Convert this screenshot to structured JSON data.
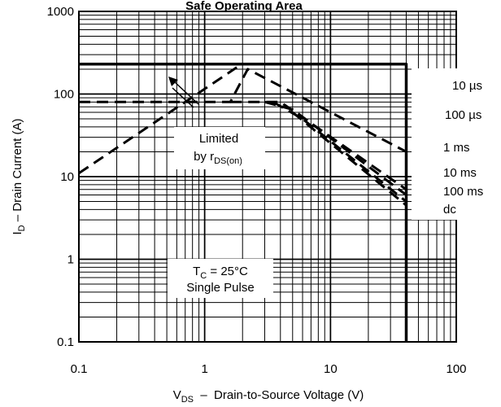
{
  "chart_data": {
    "type": "line",
    "title": "Safe Operating Area",
    "xlabel": {
      "main": "V",
      "sub": "DS",
      "rest": "  –  Drain-to-Source Voltage (V)"
    },
    "ylabel": {
      "main": "I",
      "sub": "D",
      "rest": " – Drain Current (A)"
    },
    "xscale": "log",
    "yscale": "log",
    "xlim": [
      0.1,
      100
    ],
    "ylim": [
      0.1,
      1000
    ],
    "grid": true,
    "x_tick_labels": [
      "0.1",
      "1",
      "10",
      "100"
    ],
    "y_tick_labels": [
      "0.1",
      "1",
      "10",
      "100",
      "1000"
    ],
    "series": [
      {
        "name": "10 µs",
        "style": "solid",
        "points": [
          [
            0.1,
            230
          ],
          [
            40,
            230
          ],
          [
            40,
            0.1
          ]
        ]
      },
      {
        "name": "100 µs",
        "style": "dashed",
        "points": [
          [
            0.1,
            80
          ],
          [
            1.6,
            80
          ],
          [
            2.2,
            200
          ],
          [
            40,
            20
          ]
        ]
      },
      {
        "name": "1 ms",
        "style": "dashed",
        "points": [
          [
            1.6,
            80
          ],
          [
            4,
            80
          ],
          [
            40,
            7
          ]
        ]
      },
      {
        "name": "10 ms",
        "style": "dashed",
        "points": [
          [
            3,
            80
          ],
          [
            5,
            65
          ],
          [
            40,
            6
          ]
        ]
      },
      {
        "name": "100 ms",
        "style": "dashed",
        "points": [
          [
            3.5,
            80
          ],
          [
            6,
            50
          ],
          [
            40,
            5
          ]
        ]
      },
      {
        "name": "dc",
        "style": "dashed",
        "points": [
          [
            5,
            60
          ],
          [
            40,
            4.5
          ]
        ]
      },
      {
        "name": "Limited by rDS(on)",
        "style": "dashed",
        "points": [
          [
            0.1,
            11
          ],
          [
            1.8,
            210
          ]
        ]
      }
    ]
  },
  "annotations": {
    "curve_labels": [
      "10 µs",
      "100 µs",
      "1 ms",
      "10 ms",
      "100 ms",
      "dc"
    ],
    "limited_line1": "Limited",
    "limited_line2": "by r",
    "limited_sub": "DS(on)",
    "tc_main": "T",
    "tc_sub": "C",
    "tc_rest": " = 25°C",
    "pulse": "Single Pulse"
  }
}
